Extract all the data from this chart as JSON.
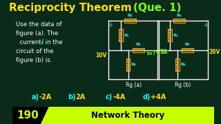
{
  "title_main": "Reciprocity Theorem ",
  "title_paren": "(Que. 1)",
  "title_color": "#FFE000",
  "title_paren_color": "#7FFF00",
  "bg_color": "#0a2a1a",
  "problem_text": [
    "Use the data of",
    "figure (a). The",
    "current i in the",
    "circuit of the",
    "figure (b) is."
  ],
  "problem_text_color": "#FFFFFF",
  "problem_i_color": "#00FFFF",
  "options": [
    "a)",
    "b)",
    "c)",
    "d)"
  ],
  "option_values": [
    "-2A",
    "2A",
    "-4A",
    "+4A"
  ],
  "options_prefix_color": "#00FFFF",
  "options_value_color": "#FFE000",
  "fig_a_label": "Fig.(a)",
  "fig_b_label": "Fig.(b)",
  "fig_label_color": "#FFFFFF",
  "circuit_color": "#FFFFFF",
  "resistor_color": "#FFA500",
  "voltage_color": "#FFE000",
  "current_color": "#7FFF00",
  "source_color": "#00FFFF",
  "footer_bg": "#C8FF00",
  "footer_number": "190",
  "footer_text": "Network Theory",
  "footer_bar_color": "#000000"
}
